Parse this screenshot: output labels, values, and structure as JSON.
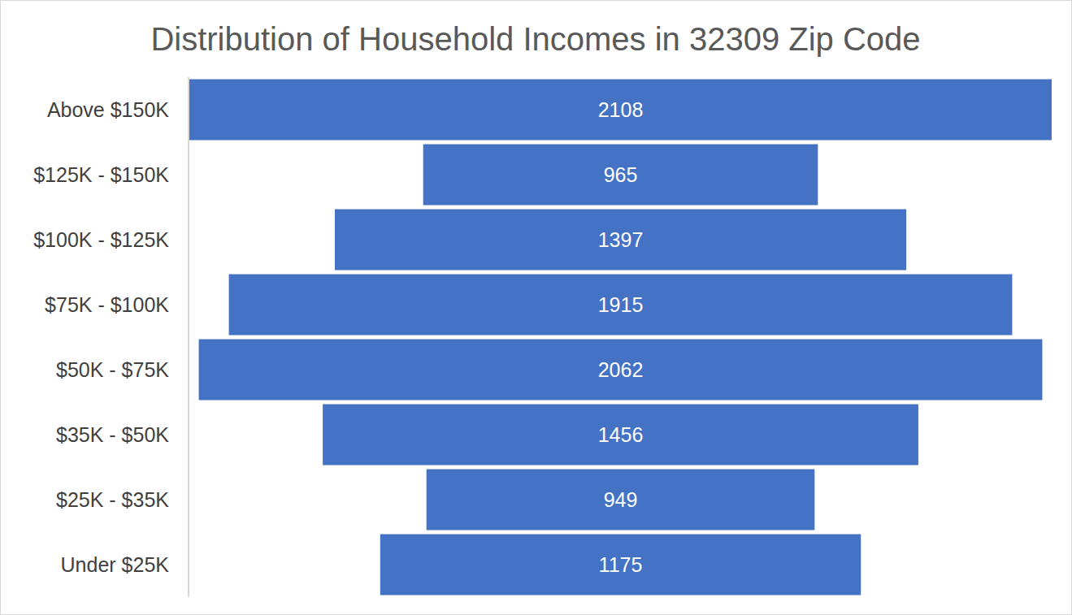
{
  "chart_data": {
    "type": "funnel",
    "title": "Distribution of Household Incomes in 32309 Zip Code",
    "orientation": "horizontal",
    "categories": [
      "Above $150K",
      "$125K - $150K",
      "$100K - $125K",
      "$75K - $100K",
      "$50K - $75K",
      "$35K - $50K",
      "$25K - $35K",
      "Under $25K"
    ],
    "values": [
      2108,
      965,
      1397,
      1915,
      2062,
      1456,
      949,
      1175
    ],
    "color": "#4472c4",
    "xlim": [
      0,
      2108
    ],
    "data_labels": true,
    "tick_labels": "y"
  }
}
